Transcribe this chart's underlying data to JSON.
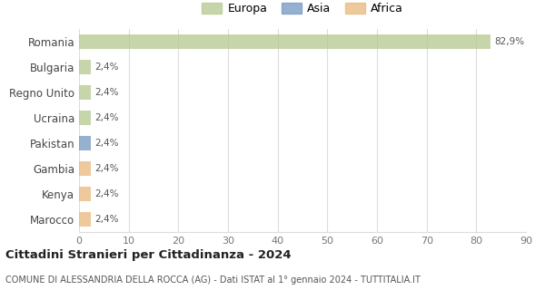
{
  "categories": [
    "Romania",
    "Bulgaria",
    "Regno Unito",
    "Ucraina",
    "Pakistan",
    "Gambia",
    "Kenya",
    "Marocco"
  ],
  "values": [
    82.9,
    2.4,
    2.4,
    2.4,
    2.4,
    2.4,
    2.4,
    2.4
  ],
  "bar_colors": [
    "#b5c98e",
    "#b5c98e",
    "#b5c98e",
    "#b5c98e",
    "#7396c0",
    "#e8b87a",
    "#e8b87a",
    "#e8b87a"
  ],
  "bar_labels": [
    "82,9%",
    "2,4%",
    "2,4%",
    "2,4%",
    "2,4%",
    "2,4%",
    "2,4%",
    "2,4%"
  ],
  "legend_labels": [
    "Europa",
    "Asia",
    "Africa"
  ],
  "legend_colors": [
    "#b5c98e",
    "#7396c0",
    "#e8b87a"
  ],
  "title": "Cittadini Stranieri per Cittadinanza - 2024",
  "subtitle": "COMUNE DI ALESSANDRIA DELLA ROCCA (AG) - Dati ISTAT al 1° gennaio 2024 - TUTTITALIA.IT",
  "xlim": [
    0,
    90
  ],
  "xticks": [
    0,
    10,
    20,
    30,
    40,
    50,
    60,
    70,
    80,
    90
  ],
  "background_color": "#ffffff",
  "grid_color": "#dddddd",
  "bar_alpha": 0.75
}
